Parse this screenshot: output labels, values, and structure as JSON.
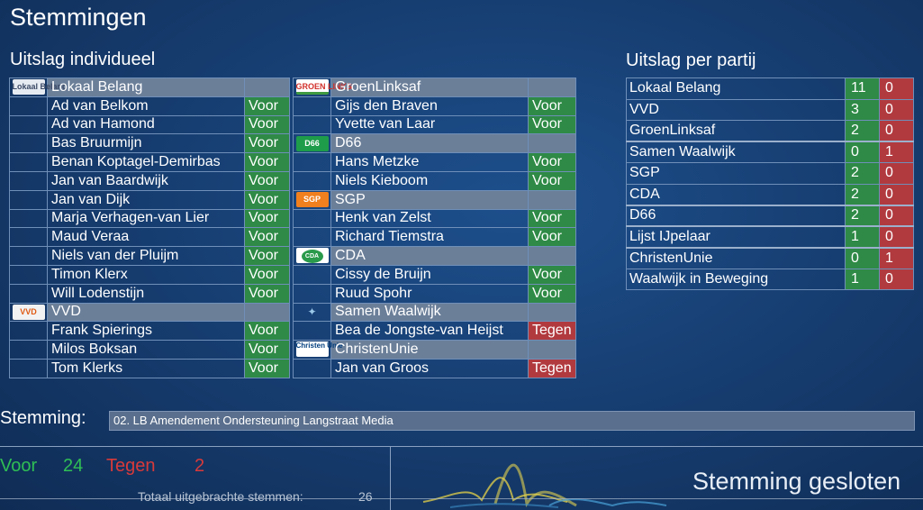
{
  "title": "Stemmingen",
  "individual_title": "Uitslag individueel",
  "party_title": "Uitslag per partij",
  "left_rows": [
    {
      "type": "party",
      "logo": "Lokaal Belang",
      "name": "Lokaal Belang",
      "vote": ""
    },
    {
      "type": "member",
      "name": "Ad van Belkom",
      "vote": "Voor"
    },
    {
      "type": "member",
      "name": "Ad van Hamond",
      "vote": "Voor"
    },
    {
      "type": "member",
      "name": "Bas Bruurmijn",
      "vote": "Voor"
    },
    {
      "type": "member",
      "name": "Benan Koptagel-Demirbas",
      "vote": "Voor"
    },
    {
      "type": "member",
      "name": "Jan van Baardwijk",
      "vote": "Voor"
    },
    {
      "type": "member",
      "name": "Jan van Dijk",
      "vote": "Voor"
    },
    {
      "type": "member",
      "name": "Marja Verhagen-van Lier",
      "vote": "Voor"
    },
    {
      "type": "member",
      "name": "Maud Veraa",
      "vote": "Voor"
    },
    {
      "type": "member",
      "name": "Niels van der Pluijm",
      "vote": "Voor"
    },
    {
      "type": "member",
      "name": "Timon Klerx",
      "vote": "Voor"
    },
    {
      "type": "member",
      "name": "Will Lodenstijn",
      "vote": "Voor"
    },
    {
      "type": "party",
      "logo": "VVD",
      "name": "VVD",
      "vote": ""
    },
    {
      "type": "member",
      "name": "Frank Spierings",
      "vote": "Voor"
    },
    {
      "type": "member",
      "name": "Milos Boksan",
      "vote": "Voor"
    },
    {
      "type": "member",
      "name": "Tom Klerks",
      "vote": "Voor"
    }
  ],
  "right_rows": [
    {
      "type": "party",
      "logo": "GROEN LINKS",
      "name": "GroenLinksaf",
      "vote": ""
    },
    {
      "type": "member",
      "name": "Gijs den Braven",
      "vote": "Voor"
    },
    {
      "type": "member",
      "name": "Yvette van Laar",
      "vote": "Voor"
    },
    {
      "type": "party",
      "logo": "D66",
      "name": "D66",
      "vote": ""
    },
    {
      "type": "member",
      "name": "Hans Metzke",
      "vote": "Voor"
    },
    {
      "type": "member",
      "name": "Niels Kieboom",
      "vote": "Voor"
    },
    {
      "type": "party",
      "logo": "SGP",
      "name": "SGP",
      "vote": ""
    },
    {
      "type": "member",
      "name": "Henk van Zelst",
      "vote": "Voor"
    },
    {
      "type": "member",
      "name": "Richard Tiemstra",
      "vote": "Voor"
    },
    {
      "type": "party",
      "logo": "CDA",
      "name": "CDA",
      "vote": ""
    },
    {
      "type": "member",
      "name": "Cissy de Bruijn",
      "vote": "Voor"
    },
    {
      "type": "member",
      "name": "Ruud Spohr",
      "vote": "Voor"
    },
    {
      "type": "party",
      "logo": "",
      "name": "Samen Waalwijk",
      "vote": ""
    },
    {
      "type": "member",
      "name": "Bea de Jongste-van Heijst",
      "vote": "Tegen"
    },
    {
      "type": "party",
      "logo": "Christen Unie",
      "name": "ChristenUnie",
      "vote": ""
    },
    {
      "type": "member",
      "name": "Jan van Groos",
      "vote": "Tegen"
    }
  ],
  "party_results": [
    {
      "name": "Lokaal Belang",
      "voor": "11",
      "tegen": "0"
    },
    {
      "name": "VVD",
      "voor": "3",
      "tegen": "0"
    },
    {
      "name": "GroenLinksaf",
      "voor": "2",
      "tegen": "0"
    },
    {
      "name": "Samen Waalwijk",
      "voor": "0",
      "tegen": "1"
    },
    {
      "name": "SGP",
      "voor": "2",
      "tegen": "0"
    },
    {
      "name": "CDA",
      "voor": "2",
      "tegen": "0"
    },
    {
      "name": "D66",
      "voor": "2",
      "tegen": "0"
    },
    {
      "name": "Lijst IJpelaar",
      "voor": "1",
      "tegen": "0"
    },
    {
      "name": "ChristenUnie",
      "voor": "0",
      "tegen": "1"
    },
    {
      "name": "Waalwijk in Beweging",
      "voor": "1",
      "tegen": "0"
    }
  ],
  "stemming": {
    "label": "Stemming:",
    "value": "02. LB Amendement Ondersteuning Langstraat Media"
  },
  "totals": {
    "voor_label": "Voor",
    "voor_count": "24",
    "tegen_label": "Tegen",
    "tegen_count": "2",
    "total_label": "Totaal uitgebrachte stemmen:",
    "total_count": "26"
  },
  "status": "Stemming gesloten",
  "colors": {
    "voor": "#2e8a46",
    "tegen": "#b13a3f",
    "header": "#6b7f99",
    "background": "#173f73"
  }
}
